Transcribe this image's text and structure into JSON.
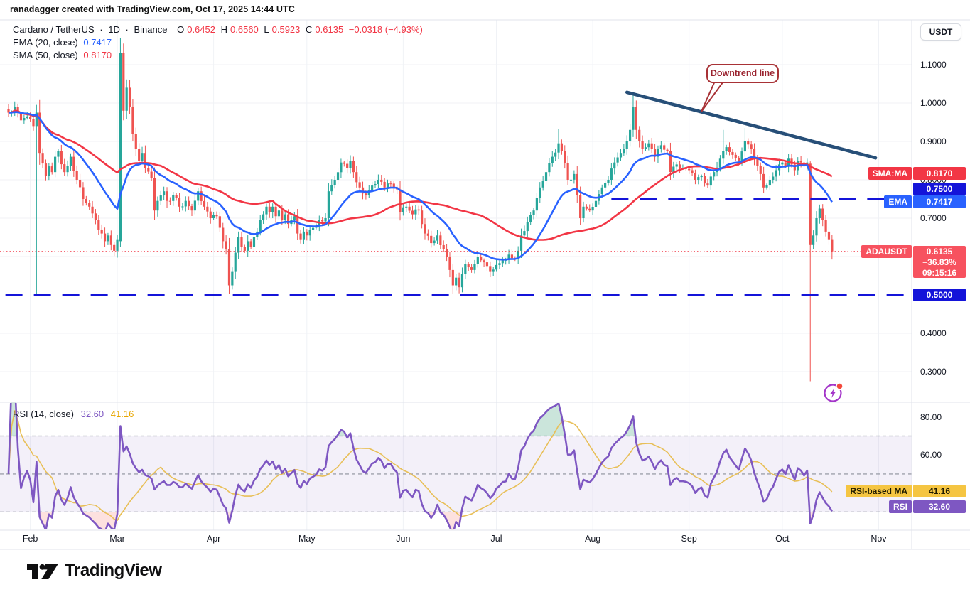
{
  "attribution": "ranadagger created with TradingView.com, Oct 17, 2025 14:44 UTC",
  "header": {
    "symbol_title": "Cardano / TetherUS",
    "sep1": "·",
    "interval": "1D",
    "sep2": "·",
    "exchange": "Binance",
    "o_label": "O",
    "o": "0.6452",
    "h_label": "H",
    "h": "0.6560",
    "l_label": "L",
    "l": "0.5923",
    "c_label": "C",
    "c": "0.6135",
    "change": "−0.0318 (−4.93%)"
  },
  "indicators": {
    "ema_label": "EMA (20, close)",
    "ema_value": "0.7417",
    "sma_label": "SMA (50, close)",
    "sma_value": "0.8170"
  },
  "rsi_pane": {
    "label": "RSI (14, close)",
    "rsi_value": "32.60",
    "ma_value": "41.16"
  },
  "annotation": {
    "text": "Downtrend line"
  },
  "axis": {
    "currency": "USDT",
    "price_ticks": [
      {
        "label": "1.1000",
        "value": 1.1
      },
      {
        "label": "1.0000",
        "value": 1.0
      },
      {
        "label": "0.9000",
        "value": 0.9
      },
      {
        "label": "0.8000",
        "value": 0.8
      },
      {
        "label": "0.7000",
        "value": 0.7
      },
      {
        "label": "0.4000",
        "value": 0.4
      },
      {
        "label": "0.3000",
        "value": 0.3
      }
    ],
    "price_gridlines": [
      1.1,
      1.0,
      0.9,
      0.8,
      0.7,
      0.6,
      0.4,
      0.3
    ],
    "rsi_ticks": [
      {
        "label": "80.00",
        "value": 80
      },
      {
        "label": "60.00",
        "value": 60
      }
    ],
    "months": [
      {
        "label": "Feb",
        "day": 7
      },
      {
        "label": "Mar",
        "day": 35
      },
      {
        "label": "Apr",
        "day": 66
      },
      {
        "label": "May",
        "day": 96
      },
      {
        "label": "Jun",
        "day": 127
      },
      {
        "label": "Jul",
        "day": 157
      },
      {
        "label": "Aug",
        "day": 188
      },
      {
        "label": "Sep",
        "day": 219
      },
      {
        "label": "Oct",
        "day": 249
      },
      {
        "label": "Nov",
        "day": 280
      }
    ]
  },
  "badges": {
    "sma_tag": "SMA:MA",
    "sma_value": "0.8170",
    "upper_level": "0.7500",
    "ema_tag": "EMA",
    "ema_value": "0.7417",
    "symbol_tag": "ADAUSDT",
    "symbol_price": "0.6135",
    "symbol_change": "−36.83%",
    "symbol_countdown": "09:15:16",
    "lower_level": "0.5000",
    "rsi_ma_tag": "RSI-based MA",
    "rsi_ma_value": "41.16",
    "rsi_tag": "RSI",
    "rsi_value": "32.60"
  },
  "footer": {
    "brand": "TradingView"
  },
  "colors": {
    "up": "#26a69a",
    "down": "#ef5350",
    "ema": "#2962ff",
    "sma": "#f23645",
    "level_blue": "#1414d9",
    "trend": "#274f78",
    "rsi": "#7e57c2",
    "rsi_ma": "#e8bf57",
    "grid": "#f0f2f6",
    "callout": "#a83236",
    "price_line": "#f23645",
    "band_fill": "rgba(126,87,194,0.09)",
    "overbought_fill": "rgba(46,150,110,0.25)",
    "oversold_fill": "rgba(244,67,54,0.16)",
    "separator": "#e0e3eb"
  },
  "chart_data": {
    "type": "candlestick",
    "title": "Cardano / TetherUS · 1D · Binance (ADAUSDT)",
    "x_unit": "daily bar index, bar 0 ≈ Jan 25 2025, bar 265 = Oct 17 2025",
    "y_axis": {
      "min": 0.2204,
      "max": 1.2166
    },
    "rsi_axis": {
      "min": 20.4,
      "max": 87.8
    },
    "last_candle": {
      "o": 0.6452,
      "h": 0.656,
      "l": 0.5923,
      "c": 0.6135
    },
    "close_anchors": [
      [
        0,
        0.975
      ],
      [
        2,
        0.99
      ],
      [
        4,
        0.955
      ],
      [
        6,
        0.965
      ],
      [
        8,
        0.94
      ],
      [
        9,
        0.975
      ],
      [
        10,
        0.87
      ],
      [
        12,
        0.81
      ],
      [
        13,
        0.835
      ],
      [
        14,
        0.82
      ],
      [
        15,
        0.86
      ],
      [
        16,
        0.875
      ],
      [
        18,
        0.82
      ],
      [
        20,
        0.86
      ],
      [
        22,
        0.8
      ],
      [
        24,
        0.75
      ],
      [
        26,
        0.73
      ],
      [
        28,
        0.695
      ],
      [
        30,
        0.66
      ],
      [
        31,
        0.64
      ],
      [
        32,
        0.655
      ],
      [
        33,
        0.63
      ],
      [
        34,
        0.615
      ],
      [
        35,
        0.645
      ],
      [
        36,
        1.13
      ],
      [
        37,
        0.98
      ],
      [
        38,
        1.04
      ],
      [
        39,
        0.99
      ],
      [
        40,
        0.92
      ],
      [
        41,
        0.88
      ],
      [
        42,
        0.85
      ],
      [
        43,
        0.87
      ],
      [
        44,
        0.83
      ],
      [
        46,
        0.805
      ],
      [
        47,
        0.72
      ],
      [
        48,
        0.745
      ],
      [
        50,
        0.77
      ],
      [
        51,
        0.745
      ],
      [
        53,
        0.76
      ],
      [
        55,
        0.73
      ],
      [
        57,
        0.745
      ],
      [
        59,
        0.72
      ],
      [
        61,
        0.77
      ],
      [
        63,
        0.73
      ],
      [
        65,
        0.7
      ],
      [
        67,
        0.705
      ],
      [
        68,
        0.675
      ],
      [
        69,
        0.64
      ],
      [
        70,
        0.62
      ],
      [
        71,
        0.525
      ],
      [
        72,
        0.56
      ],
      [
        73,
        0.61
      ],
      [
        74,
        0.65
      ],
      [
        75,
        0.625
      ],
      [
        76,
        0.615
      ],
      [
        77,
        0.64
      ],
      [
        78,
        0.625
      ],
      [
        80,
        0.665
      ],
      [
        81,
        0.695
      ],
      [
        82,
        0.71
      ],
      [
        83,
        0.73
      ],
      [
        84,
        0.715
      ],
      [
        85,
        0.73
      ],
      [
        86,
        0.705
      ],
      [
        87,
        0.72
      ],
      [
        88,
        0.695
      ],
      [
        89,
        0.71
      ],
      [
        90,
        0.685
      ],
      [
        92,
        0.705
      ],
      [
        93,
        0.66
      ],
      [
        94,
        0.645
      ],
      [
        95,
        0.665
      ],
      [
        96,
        0.655
      ],
      [
        98,
        0.675
      ],
      [
        100,
        0.695
      ],
      [
        102,
        0.7
      ],
      [
        103,
        0.77
      ],
      [
        105,
        0.8
      ],
      [
        107,
        0.845
      ],
      [
        109,
        0.83
      ],
      [
        110,
        0.85
      ],
      [
        111,
        0.82
      ],
      [
        113,
        0.78
      ],
      [
        115,
        0.76
      ],
      [
        117,
        0.785
      ],
      [
        119,
        0.8
      ],
      [
        121,
        0.78
      ],
      [
        123,
        0.79
      ],
      [
        125,
        0.775
      ],
      [
        126,
        0.715
      ],
      [
        128,
        0.73
      ],
      [
        130,
        0.71
      ],
      [
        132,
        0.72
      ],
      [
        134,
        0.66
      ],
      [
        136,
        0.635
      ],
      [
        138,
        0.655
      ],
      [
        140,
        0.62
      ],
      [
        141,
        0.6
      ],
      [
        142,
        0.565
      ],
      [
        143,
        0.525
      ],
      [
        144,
        0.545
      ],
      [
        145,
        0.52
      ],
      [
        146,
        0.555
      ],
      [
        147,
        0.58
      ],
      [
        149,
        0.565
      ],
      [
        151,
        0.6
      ],
      [
        153,
        0.585
      ],
      [
        155,
        0.56
      ],
      [
        157,
        0.578
      ],
      [
        159,
        0.59
      ],
      [
        161,
        0.605
      ],
      [
        163,
        0.595
      ],
      [
        164,
        0.615
      ],
      [
        165,
        0.655
      ],
      [
        167,
        0.69
      ],
      [
        169,
        0.72
      ],
      [
        171,
        0.78
      ],
      [
        173,
        0.82
      ],
      [
        175,
        0.86
      ],
      [
        177,
        0.895
      ],
      [
        178,
        0.875
      ],
      [
        180,
        0.8
      ],
      [
        182,
        0.815
      ],
      [
        184,
        0.7
      ],
      [
        185,
        0.73
      ],
      [
        187,
        0.72
      ],
      [
        189,
        0.745
      ],
      [
        191,
        0.78
      ],
      [
        193,
        0.8
      ],
      [
        195,
        0.845
      ],
      [
        197,
        0.87
      ],
      [
        199,
        0.9
      ],
      [
        200,
        0.93
      ],
      [
        201,
        0.99
      ],
      [
        202,
        0.93
      ],
      [
        204,
        0.88
      ],
      [
        206,
        0.895
      ],
      [
        208,
        0.86
      ],
      [
        210,
        0.89
      ],
      [
        212,
        0.875
      ],
      [
        213,
        0.82
      ],
      [
        215,
        0.84
      ],
      [
        217,
        0.83
      ],
      [
        219,
        0.825
      ],
      [
        221,
        0.8
      ],
      [
        223,
        0.81
      ],
      [
        225,
        0.785
      ],
      [
        227,
        0.82
      ],
      [
        229,
        0.855
      ],
      [
        230,
        0.875
      ],
      [
        231,
        0.885
      ],
      [
        233,
        0.865
      ],
      [
        235,
        0.85
      ],
      [
        237,
        0.9
      ],
      [
        239,
        0.88
      ],
      [
        240,
        0.855
      ],
      [
        242,
        0.815
      ],
      [
        243,
        0.78
      ],
      [
        245,
        0.8
      ],
      [
        247,
        0.825
      ],
      [
        248,
        0.84
      ],
      [
        249,
        0.845
      ],
      [
        250,
        0.835
      ],
      [
        251,
        0.855
      ],
      [
        252,
        0.84
      ],
      [
        253,
        0.825
      ],
      [
        254,
        0.85
      ],
      [
        255,
        0.845
      ],
      [
        256,
        0.835
      ],
      [
        257,
        0.845
      ],
      [
        258,
        0.63
      ],
      [
        259,
        0.655
      ],
      [
        260,
        0.7
      ],
      [
        261,
        0.725
      ],
      [
        262,
        0.695
      ],
      [
        263,
        0.665
      ],
      [
        264,
        0.645
      ],
      [
        265,
        0.6135
      ]
    ],
    "candle_overrides": {
      "9": {
        "o": 0.94,
        "h": 0.995,
        "l": 0.5
      },
      "36": {
        "o": 0.64,
        "h": 1.17,
        "l": 0.625
      },
      "37": {
        "h": 1.155,
        "l": 0.955
      },
      "71": {
        "l": 0.502
      },
      "143": {
        "l": 0.502
      },
      "177": {
        "h": 0.932
      },
      "201": {
        "h": 1.02
      },
      "230": {
        "h": 0.93
      },
      "237": {
        "h": 0.935
      },
      "243": {
        "l": 0.765
      },
      "258": {
        "o": 0.842,
        "h": 0.848,
        "l": 0.275
      },
      "265": {
        "o": 0.6452,
        "h": 0.656,
        "l": 0.5923
      }
    },
    "levels": [
      {
        "price": 0.75,
        "from_day": 194,
        "label": "0.7500"
      },
      {
        "price": 0.5,
        "from_day": -1,
        "label": "0.5000"
      }
    ],
    "price_line": 0.6135,
    "trendline": {
      "from_day": 199,
      "from_price": 1.028,
      "to_day": 279,
      "to_price": 0.857
    },
    "indicators": {
      "ema_length": 20,
      "sma_length": 50
    },
    "rsi": {
      "length": 14,
      "ma_length": 14,
      "upper": 70,
      "middle": 50,
      "lower": 30,
      "current": 32.6,
      "ma_current": 41.16
    }
  }
}
